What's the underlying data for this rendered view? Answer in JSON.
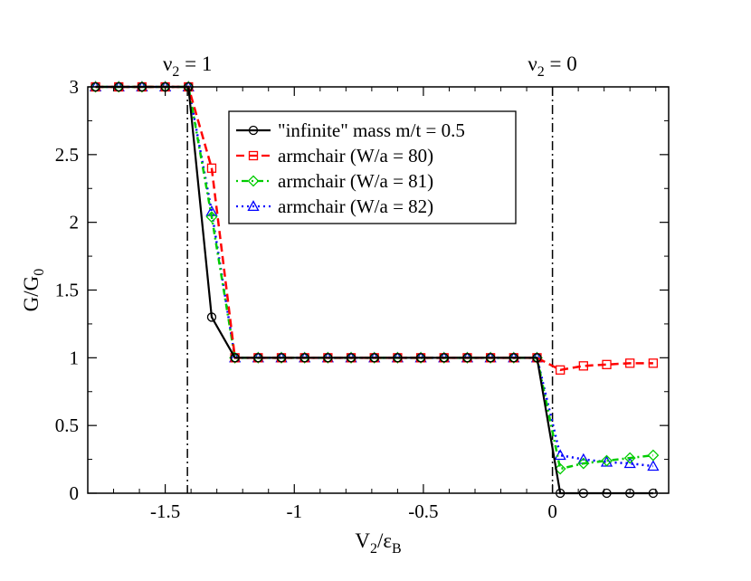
{
  "chart_data": {
    "type": "line",
    "xlim": [
      -1.8,
      0.45
    ],
    "ylim": [
      0,
      3
    ],
    "x_ticks": [
      -1.5,
      -1,
      -0.5,
      0
    ],
    "y_ticks": [
      0,
      0.5,
      1,
      1.5,
      2,
      2.5,
      3
    ],
    "x_tick_labels": [
      "-1.5",
      "-1",
      "-0.5",
      "0"
    ],
    "y_tick_labels": [
      "0",
      "0.5",
      "1",
      "1.5",
      "2",
      "2.5",
      "3"
    ],
    "xlabel": {
      "main": "V",
      "sub1": "2",
      "mid": "/ε",
      "sub2": "B"
    },
    "ylabel": {
      "main": "G/G",
      "sub": "0"
    },
    "vlines": [
      {
        "x": -1.414,
        "label_main": "ν",
        "label_sub": "2",
        "label_rest": " = 1"
      },
      {
        "x": 0.0,
        "label_main": "ν",
        "label_sub": "2",
        "label_rest": " = 0"
      }
    ],
    "series": [
      {
        "name": "\"infinite\" mass m/t = 0.5",
        "color": "#000000",
        "marker": "circle",
        "dash": "",
        "x": [
          -1.77,
          -1.68,
          -1.59,
          -1.5,
          -1.41,
          -1.32,
          -1.23,
          -1.14,
          -1.05,
          -0.96,
          -0.87,
          -0.78,
          -0.69,
          -0.6,
          -0.51,
          -0.42,
          -0.33,
          -0.24,
          -0.15,
          -0.06,
          0.03,
          0.12,
          0.21,
          0.3,
          0.39
        ],
        "y": [
          3,
          3,
          3,
          3,
          3,
          1.3,
          1,
          1,
          1,
          1,
          1,
          1,
          1,
          1,
          1,
          1,
          1,
          1,
          1,
          1,
          0,
          0,
          0,
          0,
          0
        ]
      },
      {
        "name": "armchair (W/a = 80)",
        "color": "#ff0000",
        "marker": "square",
        "dash": "9,5",
        "x": [
          -1.77,
          -1.68,
          -1.59,
          -1.5,
          -1.41,
          -1.32,
          -1.23,
          -1.14,
          -1.05,
          -0.96,
          -0.87,
          -0.78,
          -0.69,
          -0.6,
          -0.51,
          -0.42,
          -0.33,
          -0.24,
          -0.15,
          -0.06,
          0.03,
          0.12,
          0.21,
          0.3,
          0.39
        ],
        "y": [
          3,
          3,
          3,
          3,
          3,
          2.4,
          1,
          1,
          1,
          1,
          1,
          1,
          1,
          1,
          1,
          1,
          1,
          1,
          1,
          1,
          0.91,
          0.94,
          0.95,
          0.96,
          0.96
        ]
      },
      {
        "name": "armchair (W/a = 81)",
        "color": "#00cc00",
        "marker": "diamond",
        "dash": "2,4,7,4",
        "x": [
          -1.77,
          -1.68,
          -1.59,
          -1.5,
          -1.41,
          -1.32,
          -1.23,
          -1.14,
          -1.05,
          -0.96,
          -0.87,
          -0.78,
          -0.69,
          -0.6,
          -0.51,
          -0.42,
          -0.33,
          -0.24,
          -0.15,
          -0.06,
          0.03,
          0.12,
          0.21,
          0.3,
          0.39
        ],
        "y": [
          3,
          3,
          3,
          3,
          3,
          2.04,
          1,
          1,
          1,
          1,
          1,
          1,
          1,
          1,
          1,
          1,
          1,
          1,
          1,
          1,
          0.18,
          0.22,
          0.24,
          0.26,
          0.28
        ]
      },
      {
        "name": "armchair (W/a = 82)",
        "color": "#0000ff",
        "marker": "triangle",
        "dash": "2,4",
        "x": [
          -1.77,
          -1.68,
          -1.59,
          -1.5,
          -1.41,
          -1.32,
          -1.23,
          -1.14,
          -1.05,
          -0.96,
          -0.87,
          -0.78,
          -0.69,
          -0.6,
          -0.51,
          -0.42,
          -0.33,
          -0.24,
          -0.15,
          -0.06,
          0.03,
          0.12,
          0.21,
          0.3,
          0.39
        ],
        "y": [
          3,
          3,
          3,
          3,
          3,
          2.08,
          1,
          1,
          1,
          1,
          1,
          1,
          1,
          1,
          1,
          1,
          1,
          1,
          1,
          1,
          0.28,
          0.25,
          0.23,
          0.22,
          0.2
        ]
      }
    ],
    "legend_placement": "upper-center"
  }
}
